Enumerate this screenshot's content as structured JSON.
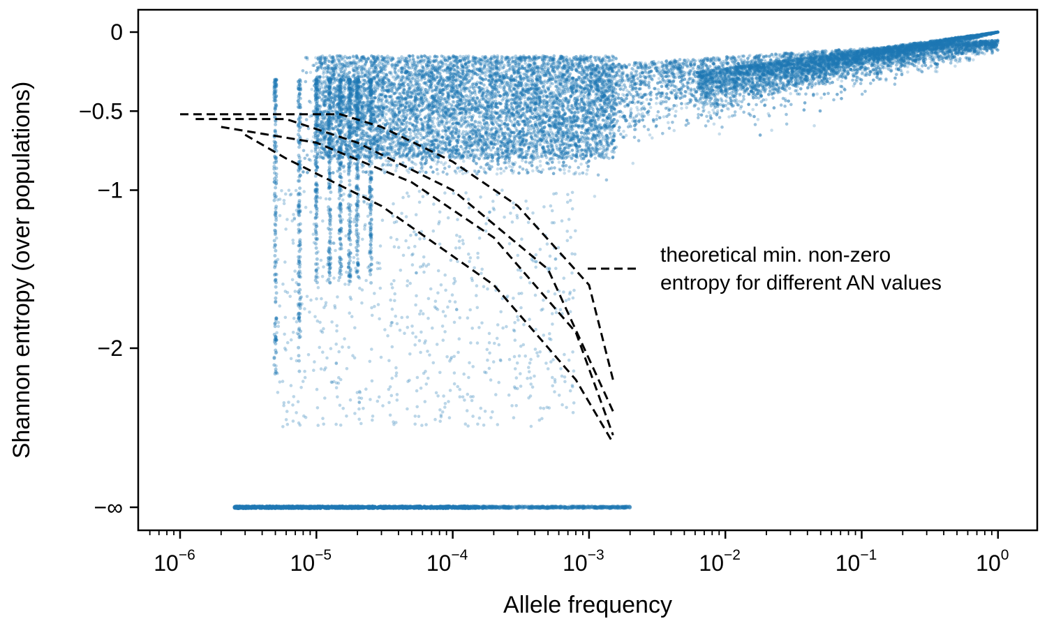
{
  "chart_data": {
    "type": "scatter",
    "title": "",
    "xlabel": "Allele frequency",
    "ylabel": "Shannon entropy (over populations)",
    "xscale": "log",
    "xlim": [
      5e-07,
      2.0
    ],
    "yscale": "piecewise (−∞ break at bottom)",
    "ylim_finite": [
      -2.6,
      0.1
    ],
    "grid": false,
    "point_color": "#1f77b4",
    "point_alpha": 0.25,
    "line_color": "#000000",
    "line_style": "dashed",
    "x_ticks": [
      {
        "base": "10",
        "exp": "−6",
        "value": 1e-06
      },
      {
        "base": "10",
        "exp": "−5",
        "value": 1e-05
      },
      {
        "base": "10",
        "exp": "−4",
        "value": 0.0001
      },
      {
        "base": "10",
        "exp": "−3",
        "value": 0.001
      },
      {
        "base": "10",
        "exp": "−2",
        "value": 0.01
      },
      {
        "base": "10",
        "exp": "−1",
        "value": 0.1
      },
      {
        "base": "10",
        "exp": "0",
        "value": 1
      }
    ],
    "y_ticks": [
      {
        "label": "0",
        "value": 0
      },
      {
        "label": "−0.5",
        "value": -0.5
      },
      {
        "label": "−1",
        "value": -1
      },
      {
        "label": "−2",
        "value": -2
      },
      {
        "label": "−∞",
        "value": "-inf"
      }
    ],
    "legend": {
      "position": "center-right",
      "entries": [
        {
          "label_line1": "theoretical min. non-zero",
          "label_line2": "entropy for different AN values",
          "style": "dashed-black"
        }
      ]
    },
    "series": [
      {
        "kind": "dashed-lines",
        "lines": [
          {
            "points": [
              [
                1e-06,
                -0.52
              ],
              [
                1.5e-05,
                -0.52
              ],
              [
                3e-05,
                -0.6
              ],
              [
                0.0001,
                -0.82
              ],
              [
                0.0003,
                -1.1
              ],
              [
                0.001,
                -1.6
              ],
              [
                0.0015,
                -2.2
              ]
            ]
          },
          {
            "points": [
              [
                1.3e-06,
                -0.55
              ],
              [
                6e-06,
                -0.55
              ],
              [
                2e-05,
                -0.7
              ],
              [
                0.0001,
                -1.0
              ],
              [
                0.0005,
                -1.5
              ],
              [
                0.0015,
                -2.4
              ]
            ]
          },
          {
            "points": [
              [
                2e-06,
                -0.6
              ],
              [
                1e-05,
                -0.7
              ],
              [
                5e-05,
                -0.95
              ],
              [
                0.0002,
                -1.3
              ],
              [
                0.0008,
                -1.9
              ],
              [
                0.0015,
                -2.55
              ]
            ]
          },
          {
            "points": [
              [
                3e-06,
                -0.65
              ],
              [
                6e-06,
                -0.8
              ],
              [
                3e-05,
                -1.1
              ],
              [
                0.0002,
                -1.6
              ],
              [
                0.0008,
                -2.2
              ],
              [
                0.0015,
                -2.6
              ]
            ]
          }
        ]
      }
    ]
  }
}
